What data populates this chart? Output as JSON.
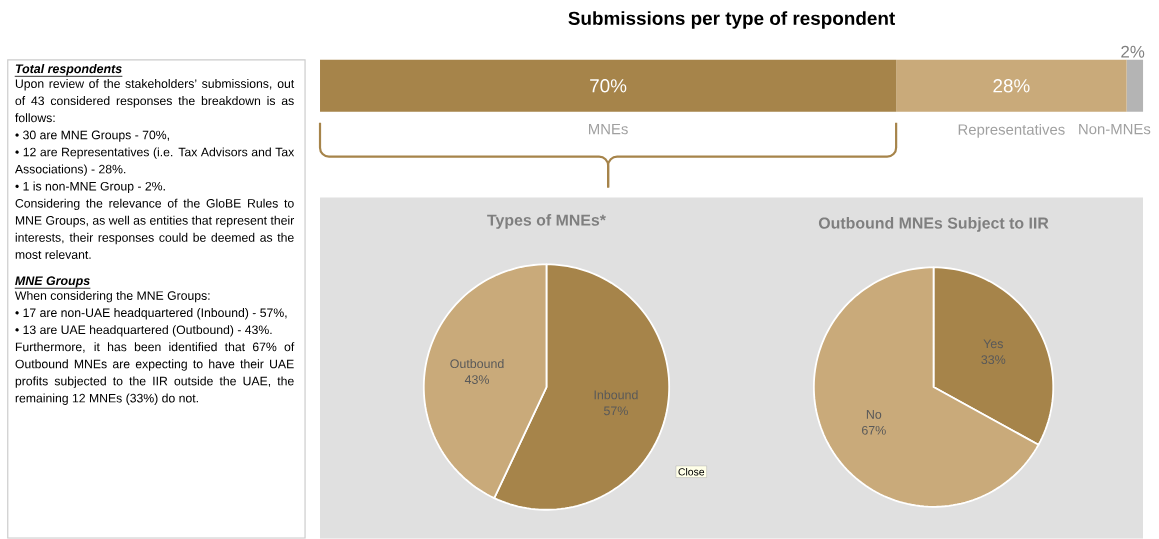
{
  "chart_data": [
    {
      "type": "other",
      "title": "Total respondents",
      "annotations": [
        "Upon review of the stakeholders’ submissions, out of 43 considered responses the breakdown is as follows:",
        "• 30 are MNE Groups - 70%,",
        "• 12 are Representatives (i.e. Tax Advisors and Tax Associations) - 28%.",
        "• 1 is non-MNE Group - 2%.",
        "Considering the relevance of the GloBE Rules to MNE Groups, as well as entities that represent their interests, their responses could be deemed as the most relevant."
      ]
    },
    {
      "type": "other",
      "title": "MNE Groups",
      "annotations": [
        "When considering the MNE Groups:",
        "• 17 are non-UAE headquartered (Inbound) - 57%,",
        "• 13 are UAE headquartered (Outbound) - 43%.",
        "Furthermore, it has been identified that 67% of Outbound MNEs are expecting to have their UAE profits subjected to the IIR outside the UAE, the remaining 12 MNEs (33%) do not."
      ]
    },
    {
      "type": "bar",
      "title": "Submissions per type of respondent",
      "orientation": "horizontal",
      "stacked": true,
      "categories": [
        null
      ],
      "series": [
        {
          "name": "MNEs",
          "color": "#a6844a",
          "values": [
            70
          ],
          "value_labels": [
            "70%"
          ]
        },
        {
          "name": "Representatives",
          "color": "#c9aa7a",
          "values": [
            28
          ],
          "value_labels": [
            "28%"
          ]
        },
        {
          "name": "Non-MNEs",
          "color": "#b4b4b4",
          "values": [
            2
          ],
          "value_labels": [
            "2%"
          ]
        }
      ]
    },
    {
      "type": "pie",
      "title": "Types of MNEs*",
      "categories": [
        "Inbound",
        "Outbound"
      ],
      "values": [
        57,
        43
      ],
      "value_labels": [
        "57%",
        "43%"
      ],
      "colors": [
        "#a6844a",
        "#c9aa7a"
      ],
      "annotations": [
        "Close"
      ]
    },
    {
      "type": "pie",
      "title": "Outbound MNEs Subject to IIR",
      "categories": [
        "Yes",
        "No"
      ],
      "values": [
        33,
        67
      ],
      "value_labels": [
        "33%",
        "67%"
      ],
      "colors": [
        "#a6844a",
        "#c9aa7a"
      ]
    }
  ]
}
